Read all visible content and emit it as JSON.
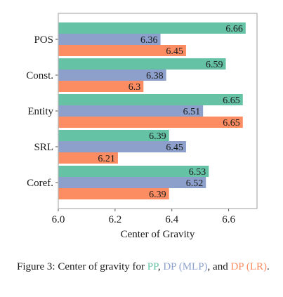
{
  "chart_data": {
    "type": "bar",
    "orientation": "horizontal",
    "categories": [
      "POS",
      "Const.",
      "Entity",
      "SRL",
      "Coref."
    ],
    "series": [
      {
        "key": "pp",
        "color": "#66c2a5",
        "values": [
          6.66,
          6.59,
          6.65,
          6.39,
          6.53
        ]
      },
      {
        "key": "dp_mlp",
        "color": "#8da0cb",
        "values": [
          6.36,
          6.38,
          6.51,
          6.45,
          6.52
        ]
      },
      {
        "key": "dp_lr",
        "color": "#fc8d62",
        "values": [
          6.45,
          6.3,
          6.65,
          6.21,
          6.39
        ]
      }
    ],
    "value_labels": [
      [
        "6.66",
        "6.59",
        "6.65",
        "6.39",
        "6.53"
      ],
      [
        "6.36",
        "6.38",
        "6.51",
        "6.45",
        "6.52"
      ],
      [
        "6.45",
        "6.3",
        "6.65",
        "6.21",
        "6.39"
      ]
    ],
    "xlabel": "Center of Gravity",
    "xlim": [
      6.0,
      6.7
    ],
    "xticks": [
      6.0,
      6.2,
      6.4,
      6.6
    ],
    "xtick_labels": [
      "6.0",
      "6.2",
      "6.4",
      "6.6"
    ],
    "grid": false
  },
  "caption": {
    "prefix": "Figure 3: Center of gravity for ",
    "pp": "PP",
    "sep1": ", ",
    "dp_mlp": "DP (MLP)",
    "sep2": ", and ",
    "dp_lr": "DP (LR)",
    "suffix": "."
  }
}
